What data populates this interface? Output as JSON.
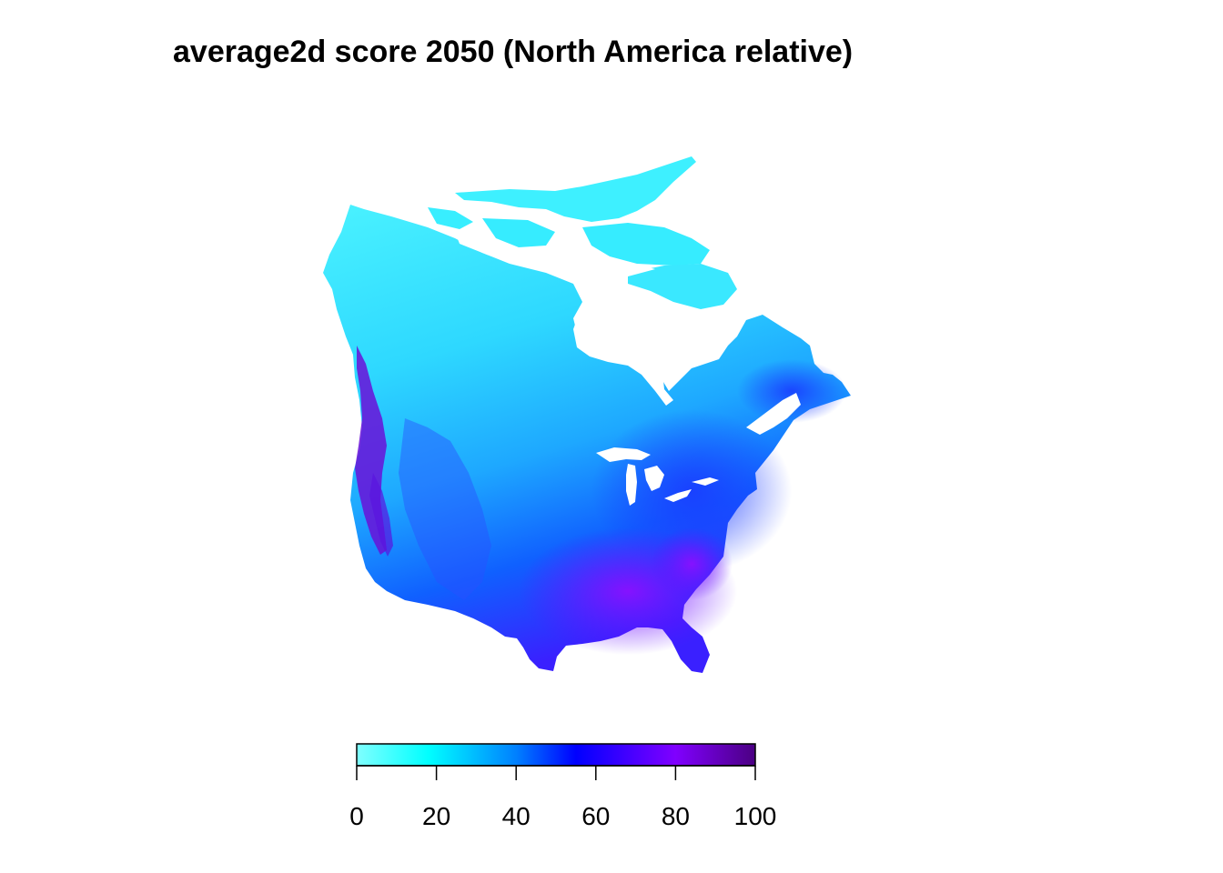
{
  "title": "average2d score 2050 (North America relative)",
  "legend": {
    "min": 0,
    "max": 100,
    "ticks": [
      "0",
      "20",
      "40",
      "60",
      "80",
      "100"
    ],
    "colors": [
      "#80ffff",
      "#00ffff",
      "#0080ff",
      "#0000ff",
      "#8000ff",
      "#4b0082"
    ]
  },
  "map_colors": {
    "north_low": "#40f0ff",
    "mid": "#20c8ff",
    "interior": "#0070ff",
    "east": "#2040ff",
    "southeast": "#7010ff",
    "west_coast": "#6000c0",
    "water": "#ffffff"
  }
}
